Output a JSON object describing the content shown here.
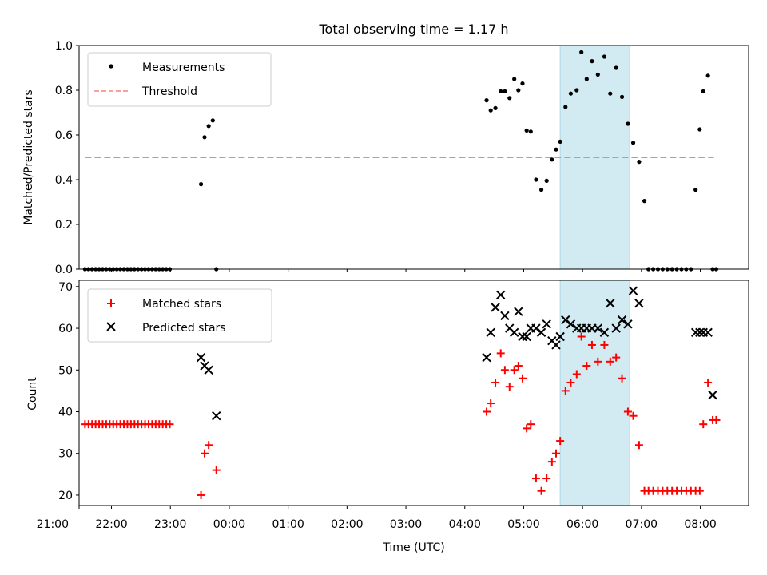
{
  "title": "Total observing time = 1.17 h",
  "colors": {
    "threshold": "#ff7f7f",
    "measurement": "#000000",
    "matched": "#ff0000",
    "predicted": "#000000",
    "highlight": "#add8e6"
  },
  "chart_data": [
    {
      "type": "scatter",
      "panel": "top",
      "ylabel": "Matched/Predicted stars",
      "xlabel": "",
      "xlim": [
        -2.55,
        8.82
      ],
      "ylim": [
        0.0,
        1.0
      ],
      "yticks": [
        0.0,
        0.2,
        0.4,
        0.6,
        0.8,
        1.0
      ],
      "ytick_labels": [
        "0.0",
        "0.2",
        "0.4",
        "0.6",
        "0.8",
        "1.0"
      ],
      "legend": [
        "Measurements",
        "Threshold"
      ],
      "legend_position": "upper-left",
      "highlight_span": [
        5.62,
        6.8
      ],
      "threshold": {
        "name": "Threshold",
        "x": [
          -2.45,
          8.23
        ],
        "y": 0.5
      },
      "series": [
        {
          "name": "Measurements",
          "x": [
            -2.45,
            -2.39,
            -2.33,
            -2.27,
            -2.21,
            -2.15,
            -2.09,
            -2.03,
            -1.97,
            -1.91,
            -1.85,
            -1.79,
            -1.73,
            -1.67,
            -1.61,
            -1.55,
            -1.49,
            -1.43,
            -1.37,
            -1.31,
            -1.25,
            -1.19,
            -1.13,
            -1.07,
            -1.01,
            -0.48,
            -0.42,
            -0.35,
            -0.28,
            -0.22,
            4.37,
            4.44,
            4.52,
            4.61,
            4.68,
            4.76,
            4.84,
            4.91,
            4.98,
            5.05,
            5.12,
            5.21,
            5.3,
            5.39,
            5.48,
            5.55,
            5.62,
            5.71,
            5.8,
            5.9,
            5.98,
            6.07,
            6.16,
            6.26,
            6.37,
            6.47,
            6.57,
            6.67,
            6.77,
            6.86,
            6.96,
            7.05,
            7.12,
            7.2,
            7.28,
            7.36,
            7.44,
            7.52,
            7.6,
            7.68,
            7.76,
            7.84,
            7.92,
            7.99,
            8.05,
            8.13,
            8.21,
            8.27
          ],
          "y": [
            0.0,
            0.0,
            0.0,
            0.0,
            0.0,
            0.0,
            0.0,
            0.0,
            0.0,
            0.0,
            0.0,
            0.0,
            0.0,
            0.0,
            0.0,
            0.0,
            0.0,
            0.0,
            0.0,
            0.0,
            0.0,
            0.0,
            0.0,
            0.0,
            0.0,
            0.38,
            0.59,
            0.64,
            0.665,
            0.0,
            0.755,
            0.71,
            0.72,
            0.795,
            0.795,
            0.765,
            0.85,
            0.8,
            0.83,
            0.62,
            0.615,
            0.4,
            0.355,
            0.395,
            0.49,
            0.535,
            0.57,
            0.725,
            0.785,
            0.8,
            0.97,
            0.85,
            0.93,
            0.87,
            0.95,
            0.785,
            0.9,
            0.77,
            0.65,
            0.565,
            0.48,
            0.305,
            0.0,
            0.0,
            0.0,
            0.0,
            0.0,
            0.0,
            0.0,
            0.0,
            0.0,
            0.0,
            0.355,
            0.625,
            0.795,
            0.865,
            0.0,
            0.0
          ]
        }
      ]
    },
    {
      "type": "scatter",
      "panel": "bottom",
      "ylabel": "Count",
      "xlabel": "Time (UTC)",
      "xlim": [
        -2.55,
        8.82
      ],
      "ylim": [
        17.5,
        71.5
      ],
      "yticks": [
        20,
        30,
        40,
        50,
        60,
        70
      ],
      "ytick_labels": [
        "20",
        "30",
        "40",
        "50",
        "60",
        "70"
      ],
      "xticks": [
        -3,
        -2,
        -1,
        0,
        1,
        2,
        3,
        4,
        5,
        6,
        7,
        8
      ],
      "xtick_labels": [
        "21:00",
        "22:00",
        "23:00",
        "00:00",
        "01:00",
        "02:00",
        "03:00",
        "04:00",
        "05:00",
        "06:00",
        "07:00",
        "08:00"
      ],
      "legend": [
        "Matched stars",
        "Predicted stars"
      ],
      "legend_position": "upper-left",
      "highlight_span": [
        5.62,
        6.8
      ],
      "series": [
        {
          "name": "Matched stars",
          "marker": "+",
          "x": [
            -2.45,
            -2.39,
            -2.33,
            -2.27,
            -2.21,
            -2.15,
            -2.09,
            -2.03,
            -1.97,
            -1.91,
            -1.85,
            -1.79,
            -1.73,
            -1.67,
            -1.61,
            -1.55,
            -1.49,
            -1.43,
            -1.37,
            -1.31,
            -1.25,
            -1.19,
            -1.13,
            -1.07,
            -1.01,
            -0.48,
            -0.42,
            -0.35,
            -0.22,
            4.37,
            4.44,
            4.52,
            4.61,
            4.68,
            4.76,
            4.84,
            4.91,
            4.98,
            5.05,
            5.12,
            5.21,
            5.3,
            5.39,
            5.48,
            5.55,
            5.62,
            5.71,
            5.8,
            5.9,
            5.98,
            6.07,
            6.16,
            6.26,
            6.37,
            6.47,
            6.57,
            6.67,
            6.77,
            6.86,
            6.96,
            7.05,
            7.12,
            7.2,
            7.28,
            7.36,
            7.44,
            7.52,
            7.6,
            7.68,
            7.76,
            7.84,
            7.92,
            7.99,
            8.05,
            8.13,
            8.21,
            8.27
          ],
          "y": [
            37,
            37,
            37,
            37,
            37,
            37,
            37,
            37,
            37,
            37,
            37,
            37,
            37,
            37,
            37,
            37,
            37,
            37,
            37,
            37,
            37,
            37,
            37,
            37,
            37,
            20,
            30,
            32,
            26,
            40,
            42,
            47,
            54,
            50,
            46,
            50,
            51,
            48,
            36,
            37,
            24,
            21,
            24,
            28,
            30,
            33,
            45,
            47,
            49,
            58,
            51,
            56,
            52,
            56,
            52,
            53,
            48,
            40,
            39,
            32,
            21,
            21,
            21,
            21,
            21,
            21,
            21,
            21,
            21,
            21,
            21,
            21,
            21,
            37,
            47,
            38,
            38
          ]
        },
        {
          "name": "Predicted stars",
          "marker": "x",
          "x": [
            -0.48,
            -0.42,
            -0.35,
            -0.22,
            4.37,
            4.44,
            4.52,
            4.61,
            4.68,
            4.76,
            4.84,
            4.91,
            4.98,
            5.05,
            5.12,
            5.21,
            5.3,
            5.39,
            5.48,
            5.55,
            5.62,
            5.71,
            5.8,
            5.9,
            5.98,
            6.07,
            6.16,
            6.26,
            6.37,
            6.47,
            6.57,
            6.67,
            6.77,
            6.86,
            6.96,
            7.92,
            7.99,
            8.05,
            8.13,
            8.21
          ],
          "y": [
            53,
            51,
            50,
            39,
            53,
            59,
            65,
            68,
            63,
            60,
            59,
            64,
            58,
            58,
            60,
            60,
            59,
            61,
            57,
            56,
            58,
            62,
            61,
            60,
            60,
            60,
            60,
            60,
            59,
            66,
            60,
            62,
            61,
            69,
            66,
            59,
            59,
            59,
            59,
            44
          ]
        }
      ]
    }
  ]
}
